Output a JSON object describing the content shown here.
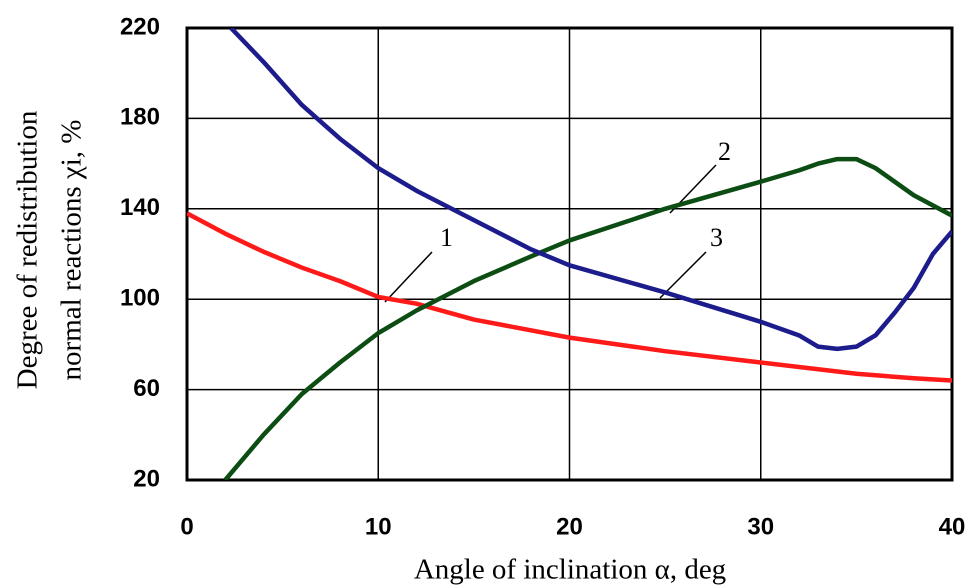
{
  "chart_data": {
    "type": "line",
    "xlabel": "Angle of inclination α, deg",
    "ylabel": [
      "Degree of redistribution",
      "normal reactions χi, %"
    ],
    "xlim": [
      0,
      40
    ],
    "xticks": [
      0,
      10,
      20,
      30,
      40
    ],
    "ylim": [
      20,
      220
    ],
    "yticks": [
      20,
      60,
      100,
      140,
      180,
      220
    ],
    "grid": true,
    "series": [
      {
        "name": "1",
        "color": "#ff1a1a",
        "x": [
          0,
          2,
          4,
          6,
          8,
          10,
          12,
          15,
          20,
          25,
          30,
          35,
          38,
          40
        ],
        "values": [
          138,
          129,
          121,
          114,
          108,
          101,
          98,
          91,
          83,
          77,
          72,
          67,
          65,
          64
        ]
      },
      {
        "name": "2",
        "color": "#0b4d12",
        "x": [
          2,
          4,
          6,
          8,
          10,
          12,
          15,
          18,
          20,
          25,
          30,
          32,
          33,
          34,
          35,
          36,
          38,
          40
        ],
        "values": [
          20,
          40,
          58,
          72,
          85,
          95,
          108,
          119,
          126,
          140,
          152,
          157,
          160,
          162,
          162,
          158,
          146,
          137
        ]
      },
      {
        "name": "3",
        "color": "#1c1c8c",
        "x": [
          2.3,
          4,
          6,
          8,
          10,
          12,
          15,
          18,
          20,
          25,
          30,
          32,
          33,
          34,
          35,
          36,
          37,
          38,
          39,
          40
        ],
        "values": [
          220,
          205,
          186,
          171,
          158,
          148,
          135,
          122,
          115,
          103,
          90,
          84,
          79,
          78,
          79,
          84,
          94,
          105,
          120,
          130
        ]
      }
    ]
  }
}
